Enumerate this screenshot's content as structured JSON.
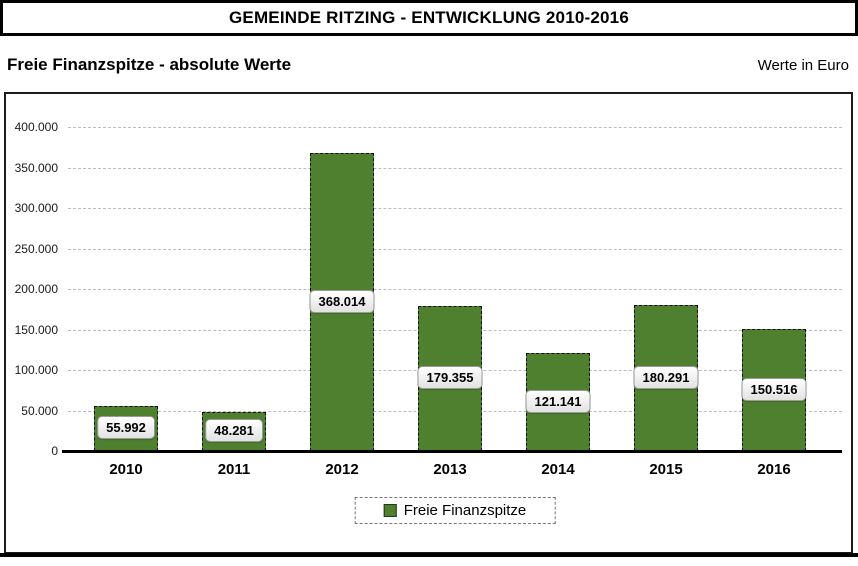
{
  "header": {
    "title": "GEMEINDE RITZING - ENTWICKLUNG 2010-2016"
  },
  "subheader": {
    "left": "Freie Finanzspitze - absolute Werte",
    "right": "Werte in Euro"
  },
  "legend": {
    "label": "Freie Finanzspitze"
  },
  "colors": {
    "bar_fill": "#4f8030",
    "bar_border": "#0d0d0d",
    "gridline": "#bdbdbd",
    "axis": "#000000",
    "frame_border": "#1b1b1b"
  },
  "chart_data": {
    "type": "bar",
    "title": "Freie Finanzspitze - absolute Werte",
    "unit": "Werte in Euro",
    "series_name": "Freie Finanzspitze",
    "categories": [
      "2010",
      "2011",
      "2012",
      "2013",
      "2014",
      "2015",
      "2016"
    ],
    "values": [
      55992,
      48281,
      368014,
      179355,
      121141,
      180291,
      150516
    ],
    "value_labels": [
      "55.992",
      "48.281",
      "368.014",
      "179.355",
      "121.141",
      "180.291",
      "150.516"
    ],
    "ylim": [
      0,
      400000
    ],
    "ytick_step": 50000,
    "ytick_labels": [
      "0",
      "50.000",
      "100.000",
      "150.000",
      "200.000",
      "250.000",
      "300.000",
      "350.000",
      "400.000"
    ],
    "grid": "horizontal-dashed",
    "legend_position": "bottom",
    "value_label_position": "center-of-bar"
  }
}
